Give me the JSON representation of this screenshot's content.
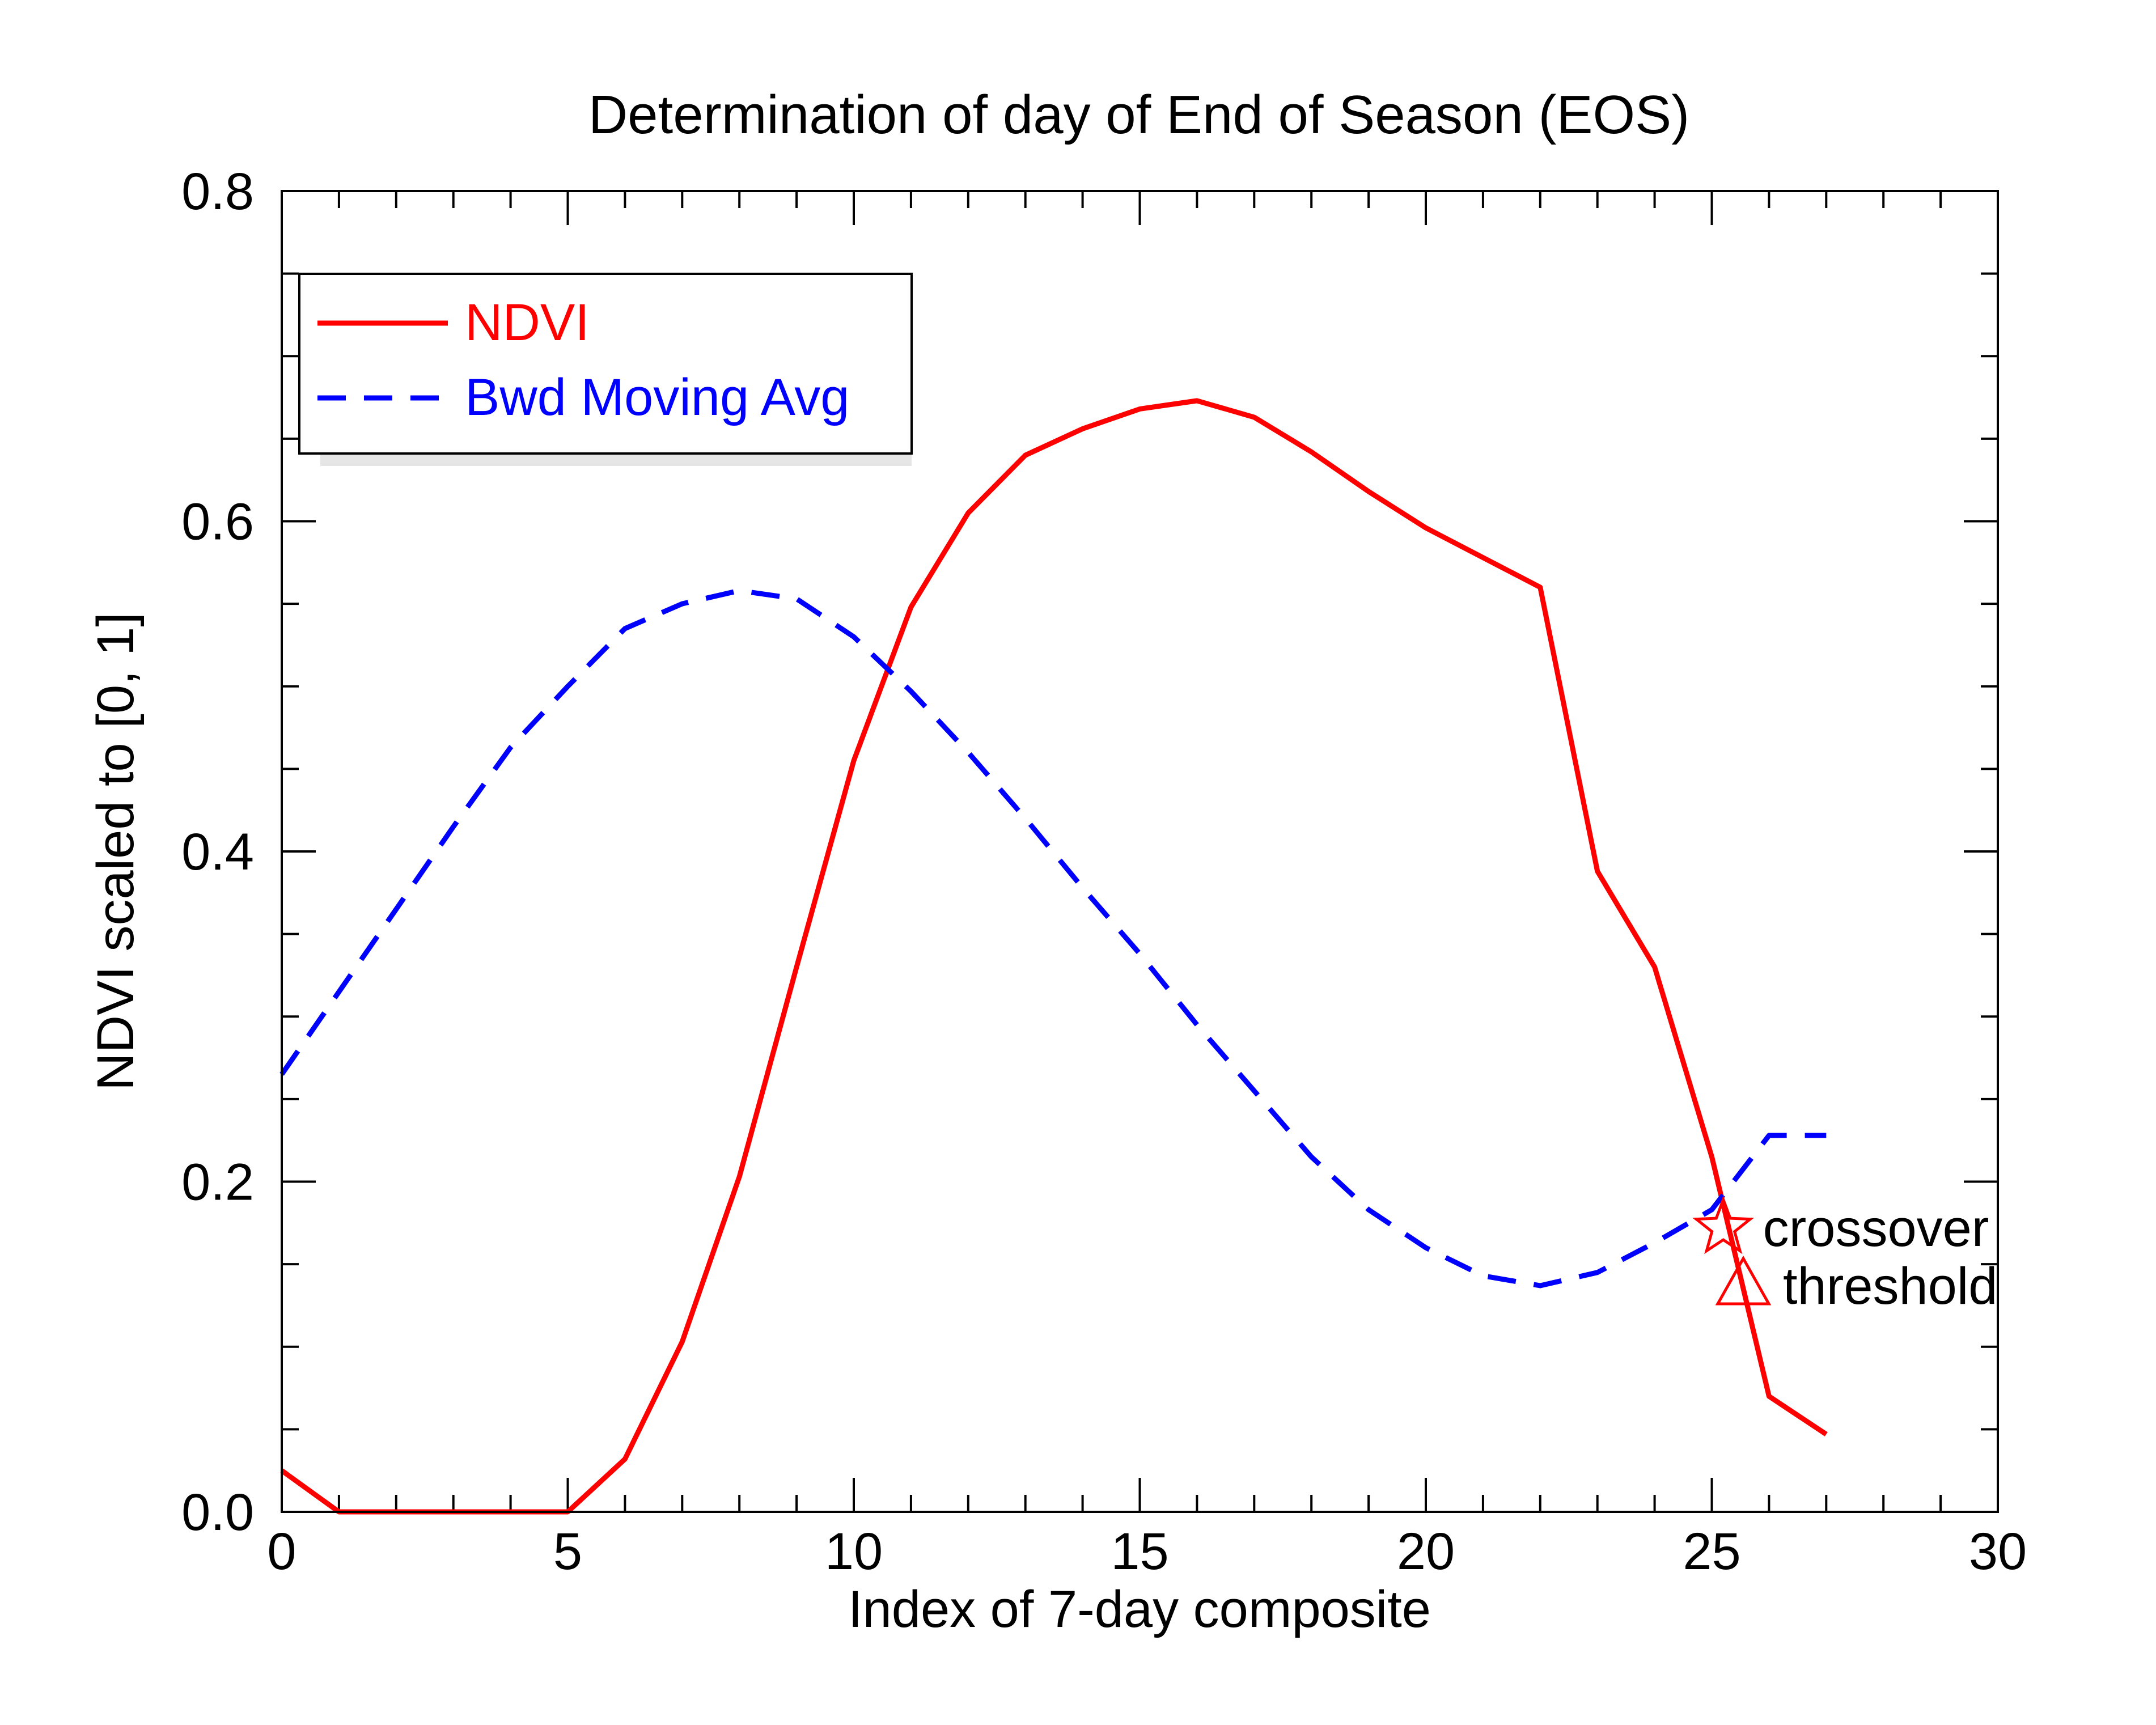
{
  "chart_data": {
    "type": "line",
    "title": "Determination of day of End of Season (EOS)",
    "xlabel": "Index of 7-day composite",
    "ylabel": "NDVI scaled to [0, 1]",
    "xlim": [
      0,
      30
    ],
    "ylim": [
      0,
      0.8
    ],
    "xticks": [
      0,
      5,
      10,
      15,
      20,
      25,
      30
    ],
    "xtick_labels": [
      "0",
      "5",
      "10",
      "15",
      "20",
      "25",
      "30"
    ],
    "yticks": [
      0,
      0.2,
      0.4,
      0.6,
      0.8
    ],
    "ytick_labels": [
      "0.0",
      "0.2",
      "0.4",
      "0.6",
      "0.8"
    ],
    "grid": false,
    "legend_position": "top-left",
    "series": [
      {
        "name": "NDVI",
        "color": "#ff0000",
        "style": "solid",
        "x": [
          0,
          1,
          2,
          3,
          4,
          5,
          6,
          7,
          8,
          9,
          10,
          11,
          12,
          13,
          14,
          15,
          16,
          17,
          18,
          19,
          20,
          21,
          22,
          23,
          24,
          25,
          26,
          27
        ],
        "y": [
          0.025,
          0,
          0,
          0,
          0,
          0,
          0.032,
          0.103,
          0.203,
          0.33,
          0.455,
          0.548,
          0.605,
          0.64,
          0.656,
          0.668,
          0.673,
          0.663,
          0.642,
          0.618,
          0.596,
          0.578,
          0.56,
          0.388,
          0.33,
          0.215,
          0.07,
          0.047
        ]
      },
      {
        "name": "Bwd Moving Avg",
        "color": "#0000ff",
        "style": "dashed",
        "x": [
          0,
          1,
          2,
          3,
          4,
          5,
          6,
          7,
          8,
          9,
          10,
          11,
          12,
          13,
          14,
          15,
          16,
          17,
          18,
          19,
          20,
          21,
          22,
          23,
          24,
          25,
          26,
          27
        ],
        "y": [
          0.265,
          0.315,
          0.365,
          0.415,
          0.463,
          0.5,
          0.535,
          0.55,
          0.558,
          0.553,
          0.53,
          0.497,
          0.46,
          0.42,
          0.378,
          0.338,
          0.295,
          0.255,
          0.215,
          0.183,
          0.16,
          0.143,
          0.137,
          0.145,
          0.163,
          0.183,
          0.228,
          0.228
        ]
      }
    ],
    "markers": [
      {
        "shape": "star",
        "x": 25.2,
        "y": 0.172,
        "color": "#ff0000",
        "label": "crossover"
      },
      {
        "shape": "triangle",
        "x": 25.55,
        "y": 0.137,
        "color": "#ff0000",
        "label": "threshold"
      }
    ]
  }
}
